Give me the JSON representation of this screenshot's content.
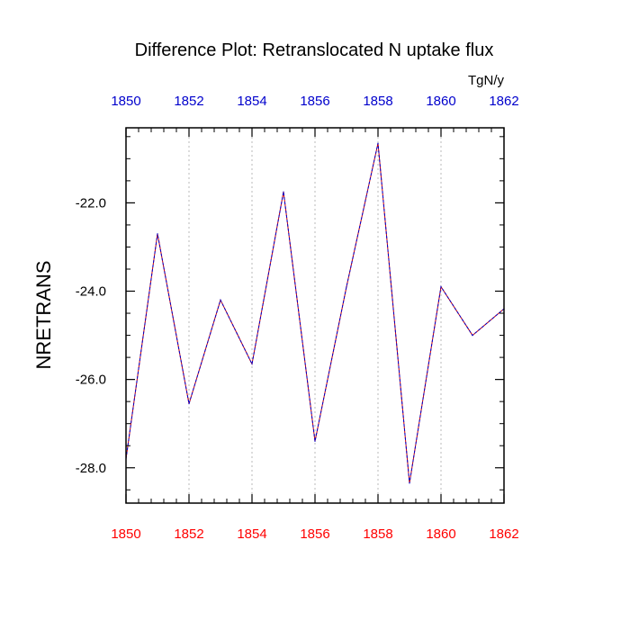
{
  "chart_data": {
    "type": "line",
    "title": "Difference Plot: Retranslocated N uptake flux",
    "units": "TgN/y",
    "ylabel": "NRETRANS",
    "xlabel": "",
    "x": [
      1850,
      1851,
      1852,
      1853,
      1854,
      1855,
      1856,
      1857,
      1858,
      1859,
      1860,
      1861,
      1862
    ],
    "xlim": [
      1850,
      1862
    ],
    "ylim": [
      -28.8,
      -20.3
    ],
    "x_ticks": [
      1850,
      1852,
      1854,
      1856,
      1858,
      1860,
      1862
    ],
    "x_tick_labels": [
      "1850",
      "1852",
      "1854",
      "1856",
      "1858",
      "1860",
      "1862"
    ],
    "y_ticks": [
      -22.0,
      -24.0,
      -26.0,
      -28.0
    ],
    "y_tick_labels": [
      "-22.0",
      "-24.0",
      "-26.0",
      "-28.0"
    ],
    "grid": "vertical dotted at major x ticks",
    "series": [
      {
        "values": [
          -27.8,
          -22.7,
          -26.55,
          -24.2,
          -25.65,
          -21.75,
          -27.4,
          -23.9,
          -20.65,
          -28.35,
          -23.9,
          -25.0,
          -24.4
        ],
        "colors": [
          "#cc0000",
          "#0000cc"
        ],
        "style": "dashed overlay"
      }
    ],
    "top_axis_color": "#0000cc",
    "bottom_axis_color": "#ff0000"
  }
}
